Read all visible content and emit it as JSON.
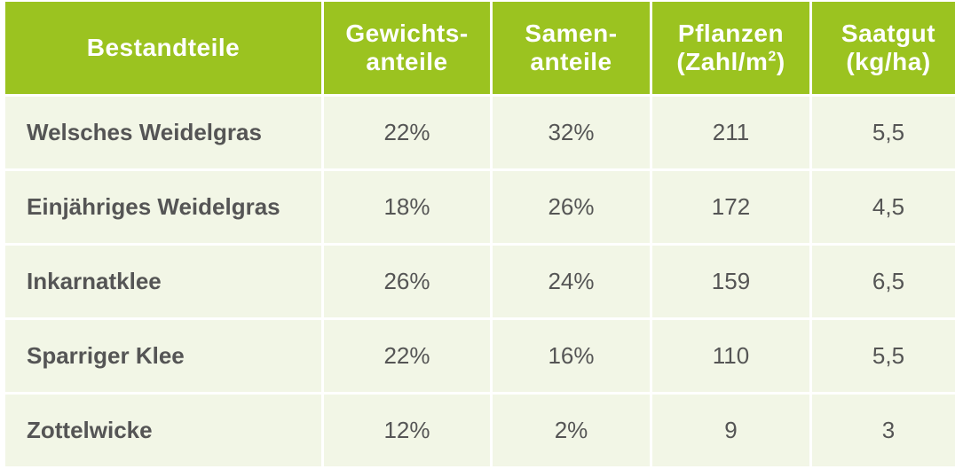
{
  "header": {
    "col1": "Bestandteile",
    "col2_line1": "Gewichts-",
    "col2_line2": "anteile",
    "col3_line1": "Samen-",
    "col3_line2": "anteile",
    "col4_line1": "Pflanzen",
    "col4_line2": "(Zahl/m",
    "col4_sup": "2",
    "col4_close": ")",
    "col5_line1": "Saatgut",
    "col5_line2": "(kg/ha)"
  },
  "rows": [
    {
      "name": "Welsches Weidelgras",
      "gewicht": "22%",
      "samen": "32%",
      "pflanzen": "211",
      "saatgut": "5,5"
    },
    {
      "name": "Einjähriges Weidelgras",
      "gewicht": "18%",
      "samen": "26%",
      "pflanzen": "172",
      "saatgut": "4,5"
    },
    {
      "name": "Inkarnatklee",
      "gewicht": "26%",
      "samen": "24%",
      "pflanzen": "159",
      "saatgut": "6,5"
    },
    {
      "name": "Sparriger Klee",
      "gewicht": "22%",
      "samen": "16%",
      "pflanzen": "110",
      "saatgut": "5,5"
    },
    {
      "name": "Zottelwicke",
      "gewicht": "12%",
      "samen": "2%",
      "pflanzen": "9",
      "saatgut": "3"
    }
  ],
  "colors": {
    "header_bg": "#9bc320",
    "row_bg": "#f2f6e6",
    "text": "#555555"
  }
}
